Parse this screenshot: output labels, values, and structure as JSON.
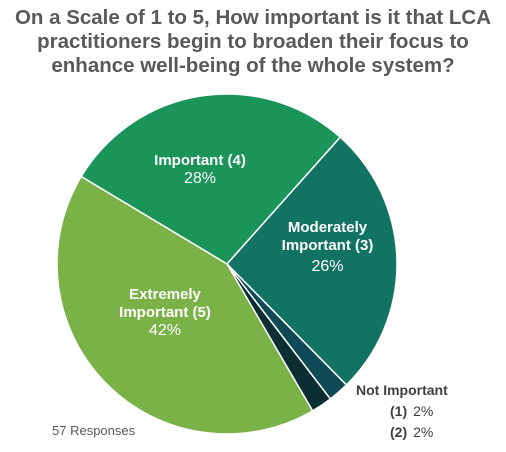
{
  "title_lines": [
    "On a Scale of 1 to 5, How important is it that LCA",
    "practitioners begin to broaden their focus to",
    "enhance well-being of the whole system?"
  ],
  "chart_data": {
    "type": "pie",
    "slices": [
      {
        "name": "Important (4)",
        "name_lines": [
          "Important (4)"
        ],
        "value": 28,
        "label": "28%",
        "color": "#1a9458"
      },
      {
        "name": "Moderately Important (3)",
        "name_lines": [
          "Moderately",
          "Important (3)"
        ],
        "value": 26,
        "label": "26%",
        "color": "#127363"
      },
      {
        "name": "Not Important (2)",
        "value": 2,
        "label": "2%",
        "color": "#0d4a55"
      },
      {
        "name": "Not Important (1)",
        "value": 2,
        "label": "2%",
        "color": "#0b2e33"
      },
      {
        "name": "Extremely Important (5)",
        "name_lines": [
          "Extremely",
          "Important (5)"
        ],
        "value": 42,
        "label": "42%",
        "color": "#7ab247"
      }
    ]
  },
  "legend": {
    "title": "Not Important",
    "items": [
      {
        "num": "(1)",
        "pct": "2%"
      },
      {
        "num": "(2)",
        "pct": "2%"
      }
    ]
  },
  "responses": "57 Responses"
}
